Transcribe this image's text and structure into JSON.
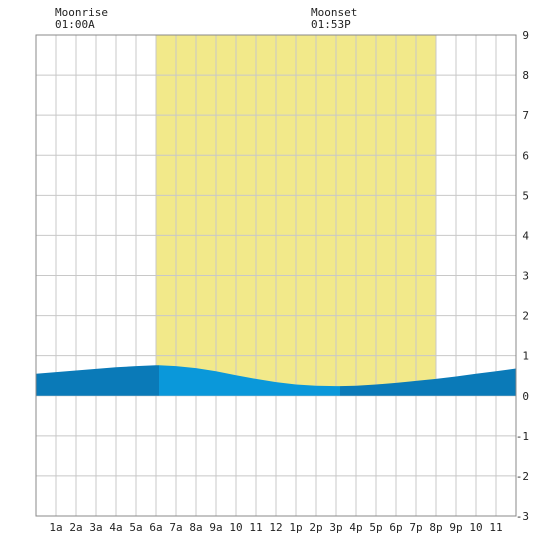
{
  "chart_data": {
    "type": "area",
    "x_tick_labels": [
      "1a",
      "2a",
      "3a",
      "4a",
      "5a",
      "6a",
      "7a",
      "8a",
      "9a",
      "10",
      "11",
      "12",
      "1p",
      "2p",
      "3p",
      "4p",
      "5p",
      "6p",
      "7p",
      "8p",
      "9p",
      "10",
      "11"
    ],
    "y_tick_labels": [
      "-3",
      "-2",
      "-1",
      "0",
      "1",
      "2",
      "3",
      "4",
      "5",
      "6",
      "7",
      "8",
      "9"
    ],
    "ylim": [
      -3,
      9
    ],
    "xlim_hours": [
      0,
      24
    ],
    "grid": true,
    "daylight_hours": [
      6,
      20
    ],
    "tide_series": {
      "x_hours": [
        0,
        1,
        2,
        3,
        4,
        5,
        6,
        6.15,
        7,
        8,
        9,
        10,
        11,
        12,
        13,
        14,
        15,
        15.2,
        16,
        17,
        18,
        19,
        20,
        21,
        22,
        23,
        24
      ],
      "y_ft": [
        0.55,
        0.59,
        0.63,
        0.67,
        0.71,
        0.74,
        0.76,
        0.76,
        0.74,
        0.69,
        0.61,
        0.51,
        0.42,
        0.34,
        0.28,
        0.25,
        0.24,
        0.24,
        0.25,
        0.28,
        0.32,
        0.37,
        0.42,
        0.48,
        0.55,
        0.61,
        0.68
      ]
    },
    "highlight_span_hours": [
      6.15,
      15.2
    ],
    "annotations": [
      {
        "title": "Moonrise",
        "time": "01:00A"
      },
      {
        "title": "Moonset",
        "time": "01:53P"
      }
    ],
    "colors": {
      "daylight": "#f2e98a",
      "grid": "#c8c8c8",
      "tide_dark": "#0a7ab8",
      "tide_light": "#0a98da",
      "border": "#888888"
    }
  }
}
